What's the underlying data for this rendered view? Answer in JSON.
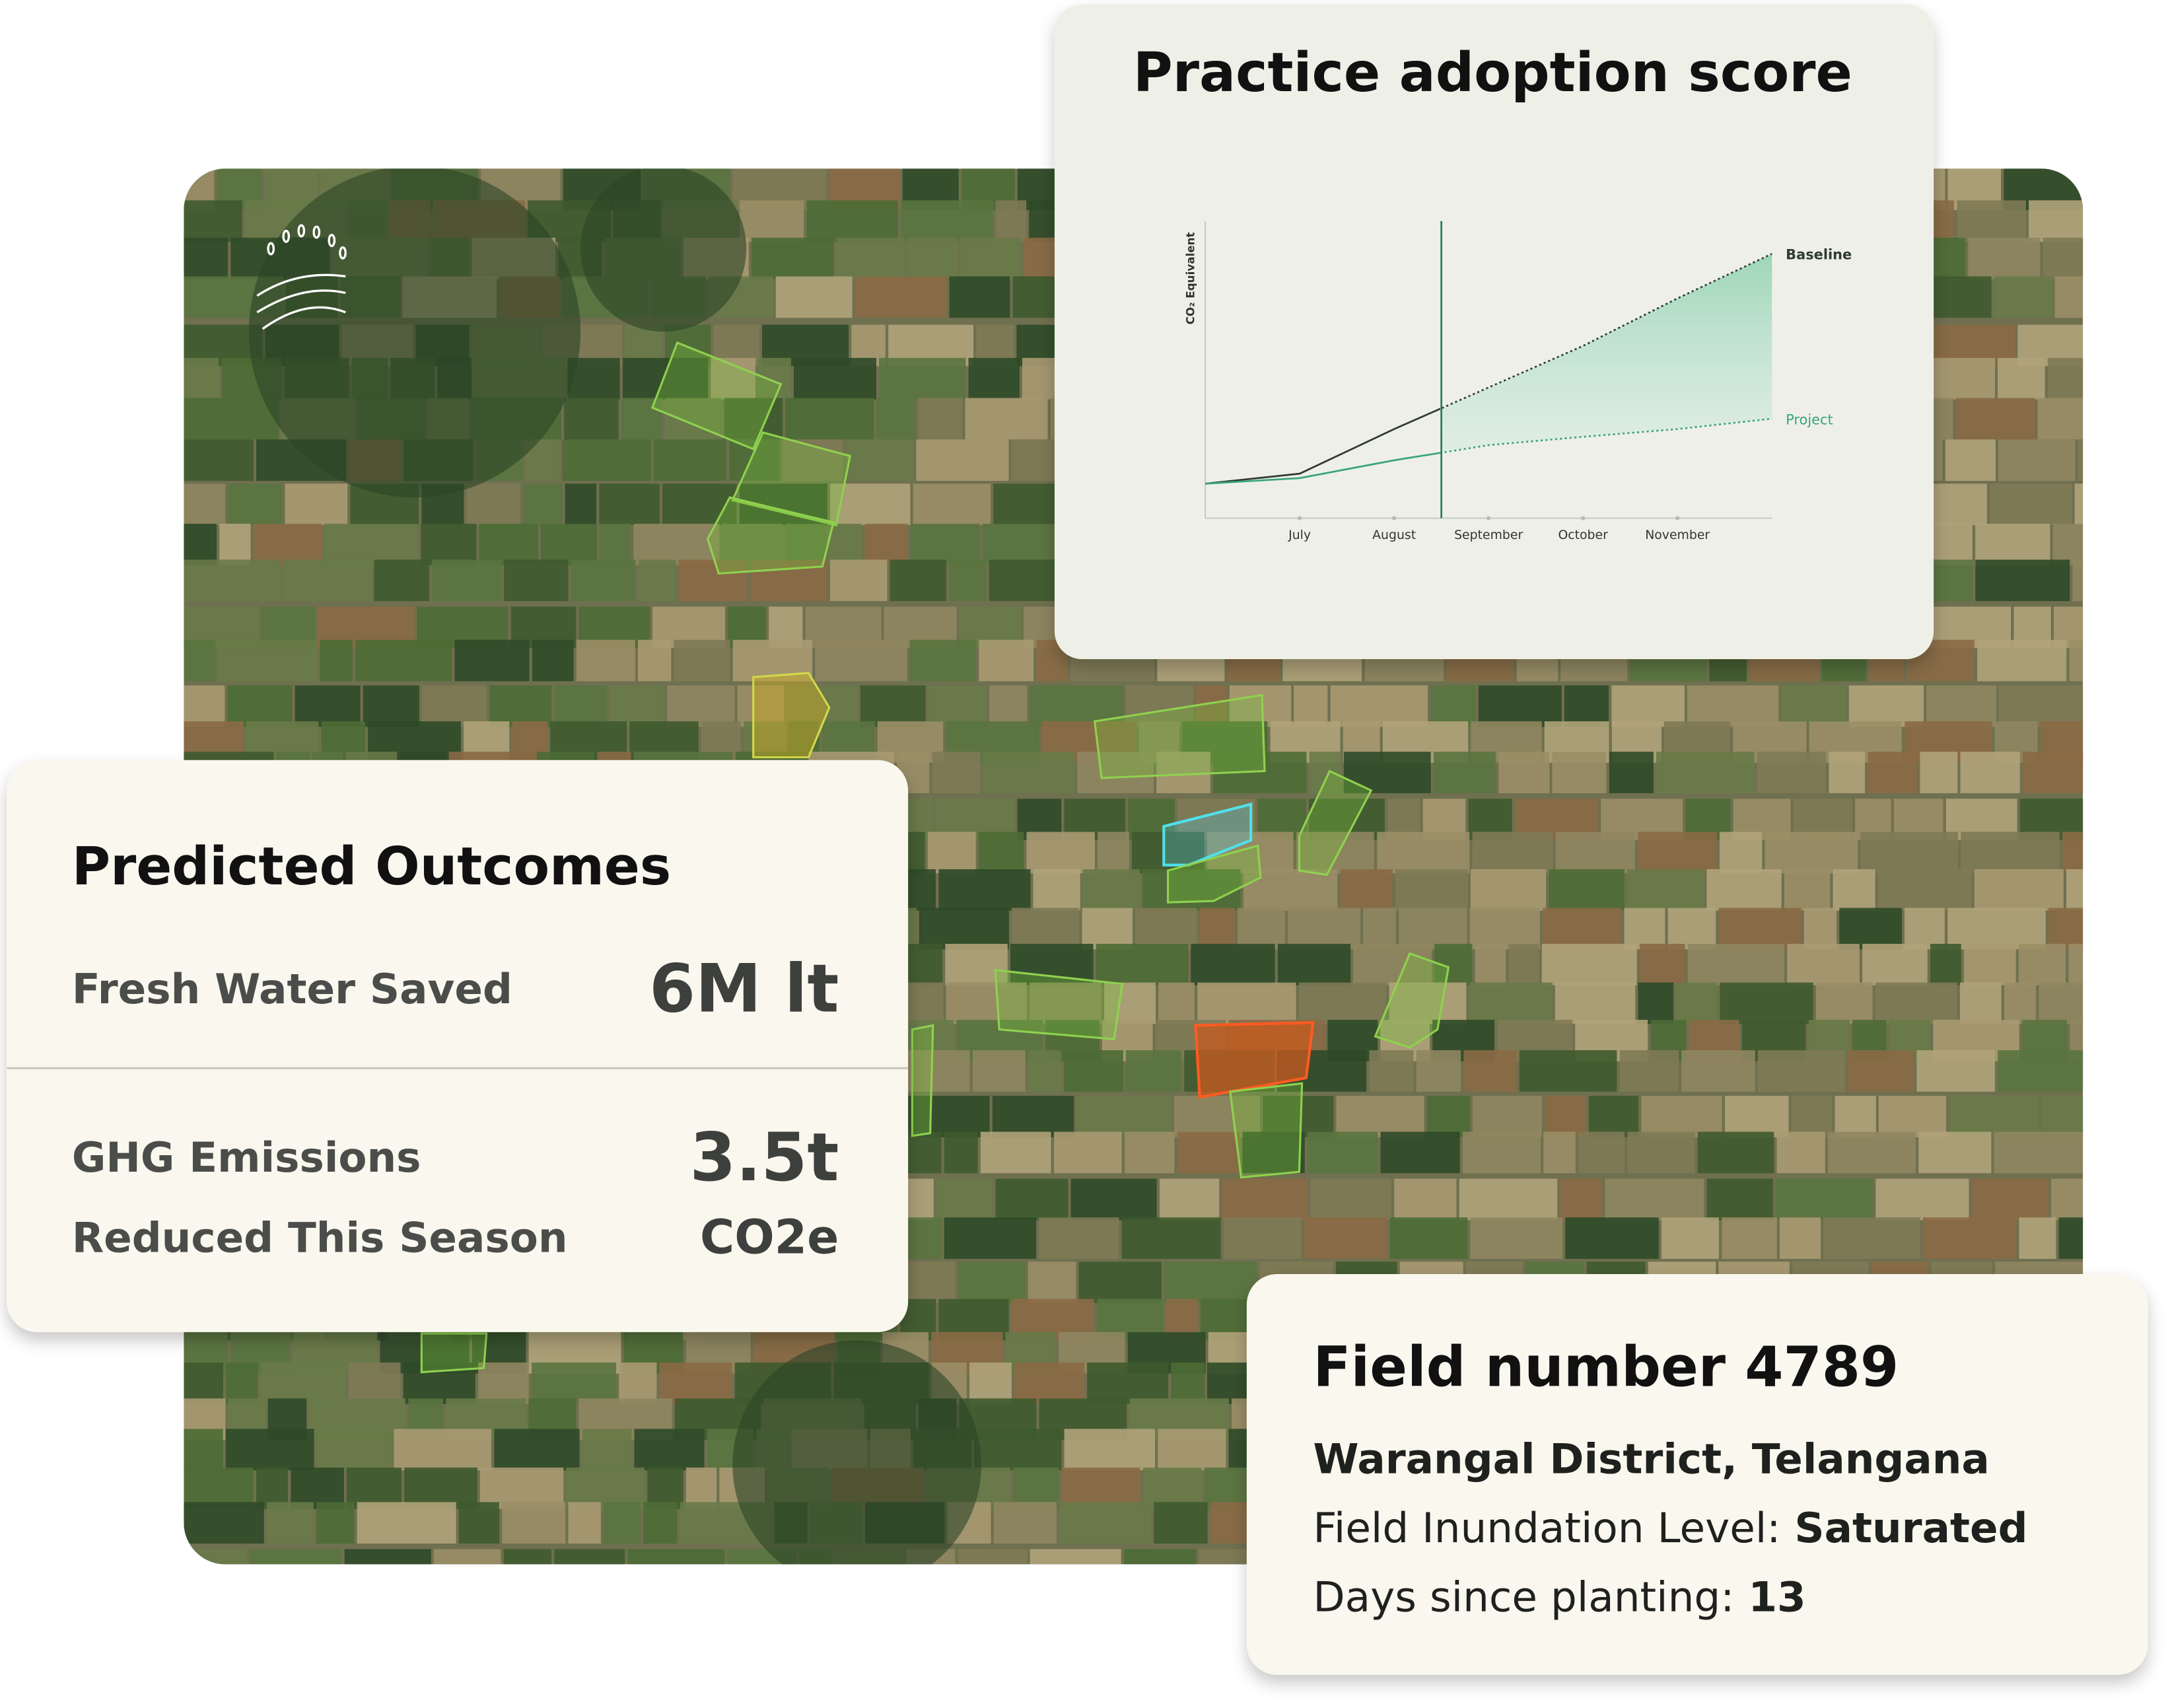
{
  "chart_data": {
    "type": "line",
    "title": "Practice adoption score",
    "y_label": "CO₂ Equivalent",
    "categories": [
      null,
      "July",
      "August",
      "September",
      "October",
      "November",
      null
    ],
    "series": [
      {
        "name": "Baseline",
        "color": "#2f3a33",
        "values": [
          11.6,
          15,
          30,
          44,
          58,
          74,
          89
        ]
      },
      {
        "name": "Project",
        "color": "#3aa57a",
        "values": [
          11.6,
          13.5,
          19.5,
          24.6,
          27.4,
          30,
          33.5
        ]
      }
    ],
    "ylim": [
      0,
      100
    ],
    "grid": false
  },
  "outcomes": {
    "title": "Predicted Outcomes",
    "water_label": "Fresh Water Saved",
    "water_value": "6M lt",
    "ghg_label": [
      "GHG Emissions",
      "Reduced This Season"
    ],
    "ghg_value": [
      "3.5t",
      "CO2e"
    ]
  },
  "field": {
    "title": "Field number 4789",
    "location": "Warangal District, Telangana",
    "inundation_label": "Field Inundation Level:",
    "inundation": "Saturated",
    "days_label": "Days since planting:",
    "days": 13
  }
}
